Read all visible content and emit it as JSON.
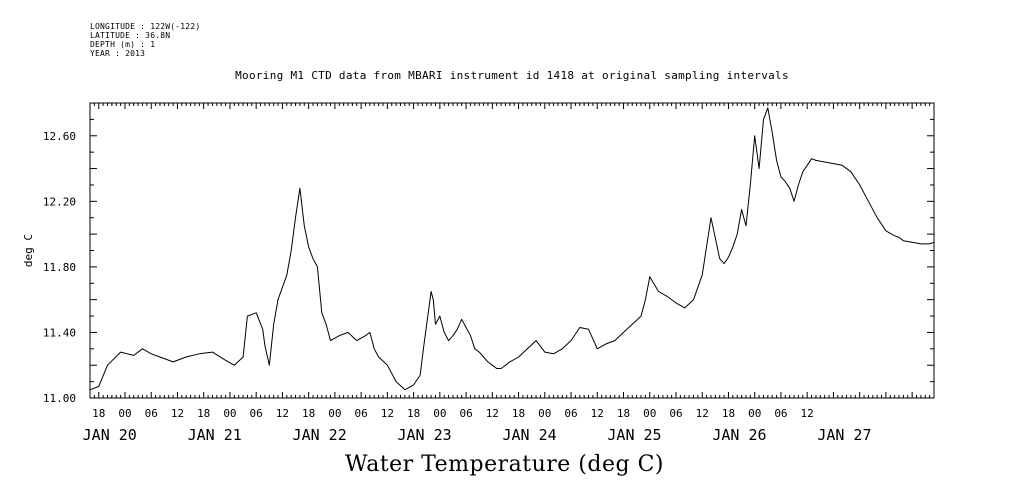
{
  "header": {
    "longitude": "LONGITUDE : 122W(-122)",
    "latitude": "LATITUDE : 36.8N",
    "depth": "DEPTH (m) : 1",
    "year": "YEAR : 2013"
  },
  "caption": "Water Temperature (deg C)",
  "chart_data": {
    "type": "line",
    "title": "Mooring M1 CTD data from MBARI instrument id 1418 at original sampling intervals",
    "xlabel": "",
    "ylabel": "deg C",
    "ylim": [
      11.0,
      12.8
    ],
    "yticks": [
      "11.00",
      "11.40",
      "11.80",
      "12.20",
      "12.60"
    ],
    "xlim": [
      "2013-01-19 16:00",
      "2013-01-27 17:00"
    ],
    "hour_ticks": [
      {
        "t": "2013-01-19 18:00",
        "label": "18"
      },
      {
        "t": "2013-01-20 00:00",
        "label": "00"
      },
      {
        "t": "2013-01-20 06:00",
        "label": "06"
      },
      {
        "t": "2013-01-20 12:00",
        "label": "12"
      },
      {
        "t": "2013-01-20 18:00",
        "label": "18"
      },
      {
        "t": "2013-01-21 00:00",
        "label": "00"
      },
      {
        "t": "2013-01-21 06:00",
        "label": "06"
      },
      {
        "t": "2013-01-21 12:00",
        "label": "12"
      },
      {
        "t": "2013-01-21 18:00",
        "label": "18"
      },
      {
        "t": "2013-01-22 00:00",
        "label": "00"
      },
      {
        "t": "2013-01-22 06:00",
        "label": "06"
      },
      {
        "t": "2013-01-22 12:00",
        "label": "12"
      },
      {
        "t": "2013-01-22 18:00",
        "label": "18"
      },
      {
        "t": "2013-01-23 00:00",
        "label": "00"
      },
      {
        "t": "2013-01-23 06:00",
        "label": "06"
      },
      {
        "t": "2013-01-23 12:00",
        "label": "12"
      },
      {
        "t": "2013-01-23 18:00",
        "label": "18"
      },
      {
        "t": "2013-01-24 00:00",
        "label": "00"
      },
      {
        "t": "2013-01-24 06:00",
        "label": "06"
      },
      {
        "t": "2013-01-24 12:00",
        "label": "12"
      },
      {
        "t": "2013-01-24 18:00",
        "label": "18"
      },
      {
        "t": "2013-01-25 00:00",
        "label": "00"
      },
      {
        "t": "2013-01-25 06:00",
        "label": "06"
      },
      {
        "t": "2013-01-25 12:00",
        "label": "12"
      },
      {
        "t": "2013-01-25 18:00",
        "label": "18"
      },
      {
        "t": "2013-01-26 00:00",
        "label": "00"
      },
      {
        "t": "2013-01-26 06:00",
        "label": "06"
      },
      {
        "t": "2013-01-26 12:00",
        "label": "12"
      }
    ],
    "day_labels": [
      {
        "t": "2013-01-19 18:00",
        "label": "JAN 20"
      },
      {
        "t": "2013-01-20 18:00",
        "label": "JAN 21"
      },
      {
        "t": "2013-01-21 18:00",
        "label": "JAN 22"
      },
      {
        "t": "2013-01-22 18:00",
        "label": "JAN 23"
      },
      {
        "t": "2013-01-23 18:00",
        "label": "JAN 24"
      },
      {
        "t": "2013-01-24 18:00",
        "label": "JAN 25"
      },
      {
        "t": "2013-01-25 18:00",
        "label": "JAN 26"
      },
      {
        "t": "2013-01-26 18:00",
        "label": "JAN 27"
      }
    ],
    "series": [
      {
        "color": "#000000",
        "x": [
          "2013-01-19 16:00",
          "2013-01-19 18:00",
          "2013-01-19 20:00",
          "2013-01-19 23:00",
          "2013-01-20 02:00",
          "2013-01-20 04:00",
          "2013-01-20 06:00",
          "2013-01-20 08:00",
          "2013-01-20 11:00",
          "2013-01-20 14:00",
          "2013-01-20 17:00",
          "2013-01-20 20:00",
          "2013-01-20 23:00",
          "2013-01-21 01:00",
          "2013-01-21 03:00",
          "2013-01-21 04:00",
          "2013-01-21 06:00",
          "2013-01-21 07:30",
          "2013-01-21 08:00",
          "2013-01-21 09:00",
          "2013-01-21 10:00",
          "2013-01-21 11:00",
          "2013-01-21 13:00",
          "2013-01-21 14:00",
          "2013-01-21 15:00",
          "2013-01-21 16:00",
          "2013-01-21 17:00",
          "2013-01-21 18:00",
          "2013-01-21 19:00",
          "2013-01-21 20:00",
          "2013-01-21 21:00",
          "2013-01-21 22:00",
          "2013-01-21 23:00",
          "2013-01-22 01:00",
          "2013-01-22 03:00",
          "2013-01-22 05:00",
          "2013-01-22 07:00",
          "2013-01-22 08:00",
          "2013-01-22 09:00",
          "2013-01-22 10:00",
          "2013-01-22 12:00",
          "2013-01-22 14:00",
          "2013-01-22 16:00",
          "2013-01-22 18:00",
          "2013-01-22 19:30",
          "2013-01-22 20:00",
          "2013-01-22 20:30",
          "2013-01-22 21:00",
          "2013-01-22 21:30",
          "2013-01-22 22:00",
          "2013-01-22 22:30",
          "2013-01-22 23:00",
          "2013-01-23 00:00",
          "2013-01-23 01:00",
          "2013-01-23 02:00",
          "2013-01-23 03:00",
          "2013-01-23 04:00",
          "2013-01-23 05:00",
          "2013-01-23 06:00",
          "2013-01-23 07:00",
          "2013-01-23 08:00",
          "2013-01-23 09:00",
          "2013-01-23 10:00",
          "2013-01-23 11:00",
          "2013-01-23 12:00",
          "2013-01-23 13:00",
          "2013-01-23 14:00",
          "2013-01-23 16:00",
          "2013-01-23 18:00",
          "2013-01-23 20:00",
          "2013-01-23 22:00",
          "2013-01-24 00:00",
          "2013-01-24 02:00",
          "2013-01-24 04:00",
          "2013-01-24 06:00",
          "2013-01-24 08:00",
          "2013-01-24 10:00",
          "2013-01-24 12:00",
          "2013-01-24 14:00",
          "2013-01-24 16:00",
          "2013-01-24 18:00",
          "2013-01-24 20:00",
          "2013-01-24 22:00",
          "2013-01-24 23:00",
          "2013-01-25 00:00",
          "2013-01-25 02:00",
          "2013-01-25 04:00",
          "2013-01-25 06:00",
          "2013-01-25 08:00",
          "2013-01-25 10:00",
          "2013-01-25 12:00",
          "2013-01-25 14:00",
          "2013-01-25 16:00",
          "2013-01-25 17:00",
          "2013-01-25 18:00",
          "2013-01-25 19:00",
          "2013-01-25 20:00",
          "2013-01-25 21:00",
          "2013-01-25 22:00",
          "2013-01-25 23:00",
          "2013-01-26 00:00",
          "2013-01-26 01:00",
          "2013-01-26 02:00",
          "2013-01-26 03:00",
          "2013-01-26 04:00",
          "2013-01-26 05:00",
          "2013-01-26 06:00",
          "2013-01-26 07:00",
          "2013-01-26 08:00",
          "2013-01-26 09:00",
          "2013-01-26 10:00",
          "2013-01-26 11:00",
          "2013-01-26 12:00",
          "2013-01-26 13:00",
          "2013-01-26 14:00",
          "2013-01-26 16:00",
          "2013-01-26 18:00",
          "2013-01-26 20:00",
          "2013-01-26 22:00",
          "2013-01-27 00:00",
          "2013-01-27 02:00",
          "2013-01-27 04:00",
          "2013-01-27 06:00",
          "2013-01-27 08:00",
          "2013-01-27 09:00",
          "2013-01-27 10:00",
          "2013-01-27 12:00",
          "2013-01-27 14:00",
          "2013-01-27 16:00",
          "2013-01-27 17:00"
        ],
        "y": [
          11.05,
          11.07,
          11.2,
          11.28,
          11.26,
          11.3,
          11.27,
          11.25,
          11.22,
          11.25,
          11.27,
          11.28,
          11.23,
          11.2,
          11.25,
          11.5,
          11.52,
          11.42,
          11.32,
          11.2,
          11.45,
          11.6,
          11.75,
          11.9,
          12.1,
          12.28,
          12.05,
          11.92,
          11.85,
          11.8,
          11.52,
          11.45,
          11.35,
          11.38,
          11.4,
          11.35,
          11.38,
          11.4,
          11.3,
          11.25,
          11.2,
          11.1,
          11.05,
          11.08,
          11.14,
          11.25,
          11.35,
          11.45,
          11.55,
          11.65,
          11.6,
          11.45,
          11.5,
          11.4,
          11.35,
          11.38,
          11.42,
          11.48,
          11.43,
          11.38,
          11.3,
          11.28,
          11.25,
          11.22,
          11.2,
          11.18,
          11.18,
          11.22,
          11.25,
          11.3,
          11.35,
          11.28,
          11.27,
          11.3,
          11.35,
          11.43,
          11.42,
          11.3,
          11.33,
          11.35,
          11.4,
          11.45,
          11.5,
          11.6,
          11.74,
          11.65,
          11.62,
          11.58,
          11.55,
          11.6,
          11.75,
          12.1,
          11.85,
          11.82,
          11.86,
          11.92,
          12.0,
          12.15,
          12.05,
          12.3,
          12.6,
          12.4,
          12.7,
          12.77,
          12.62,
          12.45,
          12.35,
          12.32,
          12.28,
          12.2,
          12.3,
          12.38,
          12.42,
          12.46,
          12.45,
          12.44,
          12.43,
          12.42,
          12.38,
          12.3,
          12.2,
          12.1,
          12.02,
          11.99,
          11.98,
          11.96,
          11.95,
          11.94,
          11.94,
          11.95
        ]
      }
    ]
  }
}
